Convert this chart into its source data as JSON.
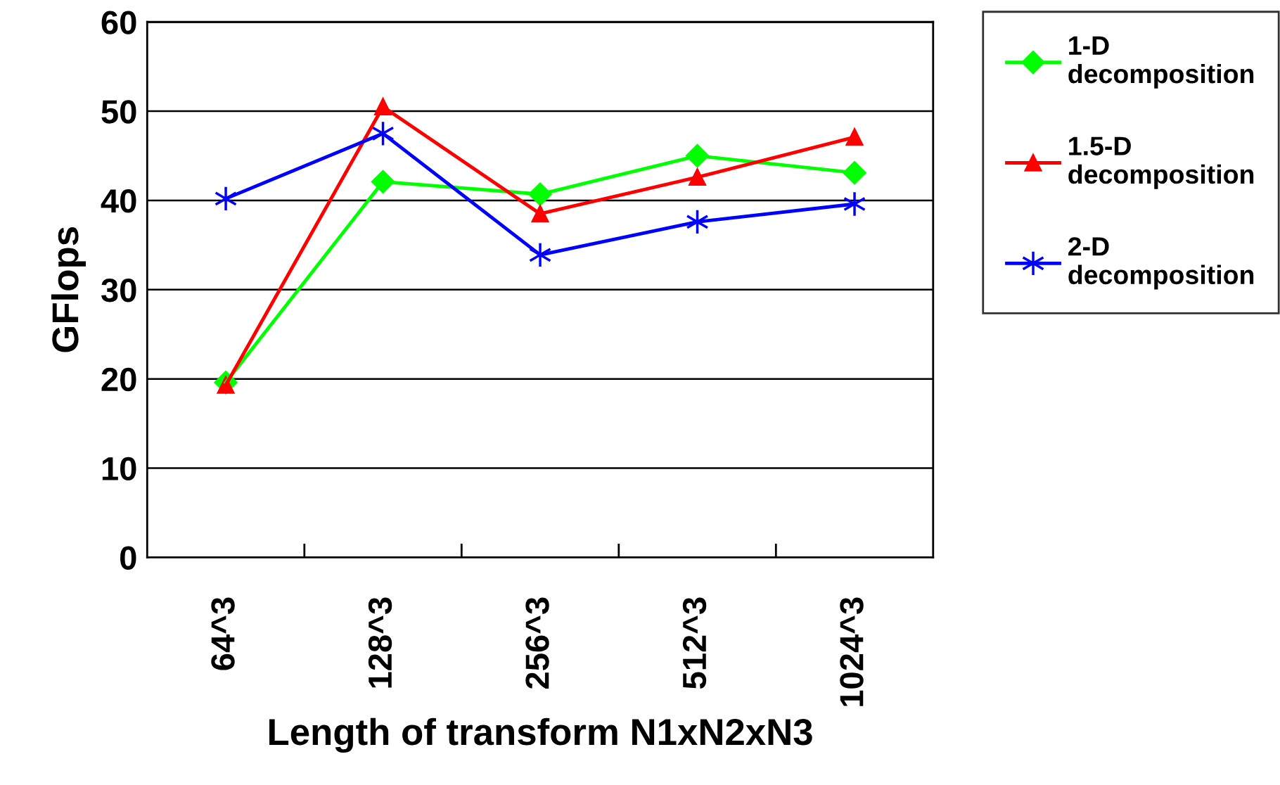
{
  "chart_data": {
    "type": "line",
    "xlabel": "Length of transform N1xN2xN3",
    "ylabel": "GFlops",
    "categories": [
      "64^3",
      "128^3",
      "256^3",
      "512^3",
      "1024^3"
    ],
    "ylim": [
      0,
      60
    ],
    "yticks": [
      0,
      10,
      20,
      30,
      40,
      50,
      60
    ],
    "grid": "y",
    "legend": "top right",
    "series": [
      {
        "name": "1-D decomposition",
        "color": "#00ff00",
        "marker": "diamond",
        "values": [
          19.6,
          42.1,
          40.7,
          45.0,
          43.1
        ]
      },
      {
        "name": "1.5-D decomposition",
        "color": "#ff0000",
        "marker": "triangle",
        "values": [
          19.3,
          50.5,
          38.5,
          42.6,
          47.1
        ]
      },
      {
        "name": "2-D decomposition",
        "color": "#0000ff",
        "marker": "cross",
        "values": [
          40.2,
          47.5,
          33.9,
          37.6,
          39.6
        ]
      }
    ]
  }
}
